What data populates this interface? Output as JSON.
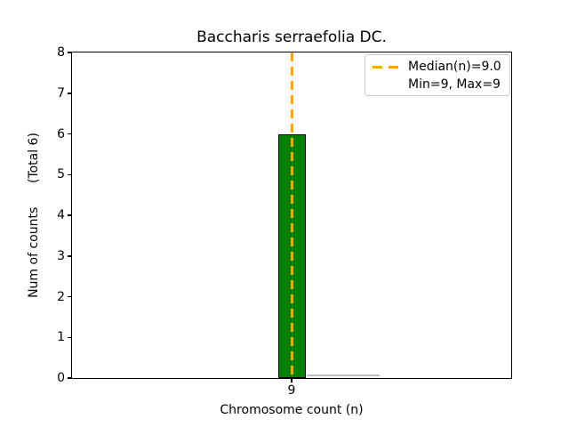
{
  "chart_data": {
    "type": "bar",
    "title": "Baccharis serraefolia DC.",
    "xlabel": "Chromosome count (n)",
    "ylabel": "Num of counts      (Total 6)",
    "categories": [
      "9"
    ],
    "values": [
      6
    ],
    "ylim": [
      0,
      8
    ],
    "yticks": [
      0,
      1,
      2,
      3,
      4,
      5,
      6,
      7,
      8
    ],
    "grid": false,
    "bar_color": "#008000",
    "bar_edge_color": "#000000",
    "bar_width_frac": 0.0625,
    "median_line": {
      "value": 9.0,
      "color": "#ffa500",
      "style": "dashed"
    },
    "legend": {
      "position": "upper right",
      "entries": [
        "Median(n)=9.0",
        "Min=9, Max=9"
      ]
    }
  }
}
